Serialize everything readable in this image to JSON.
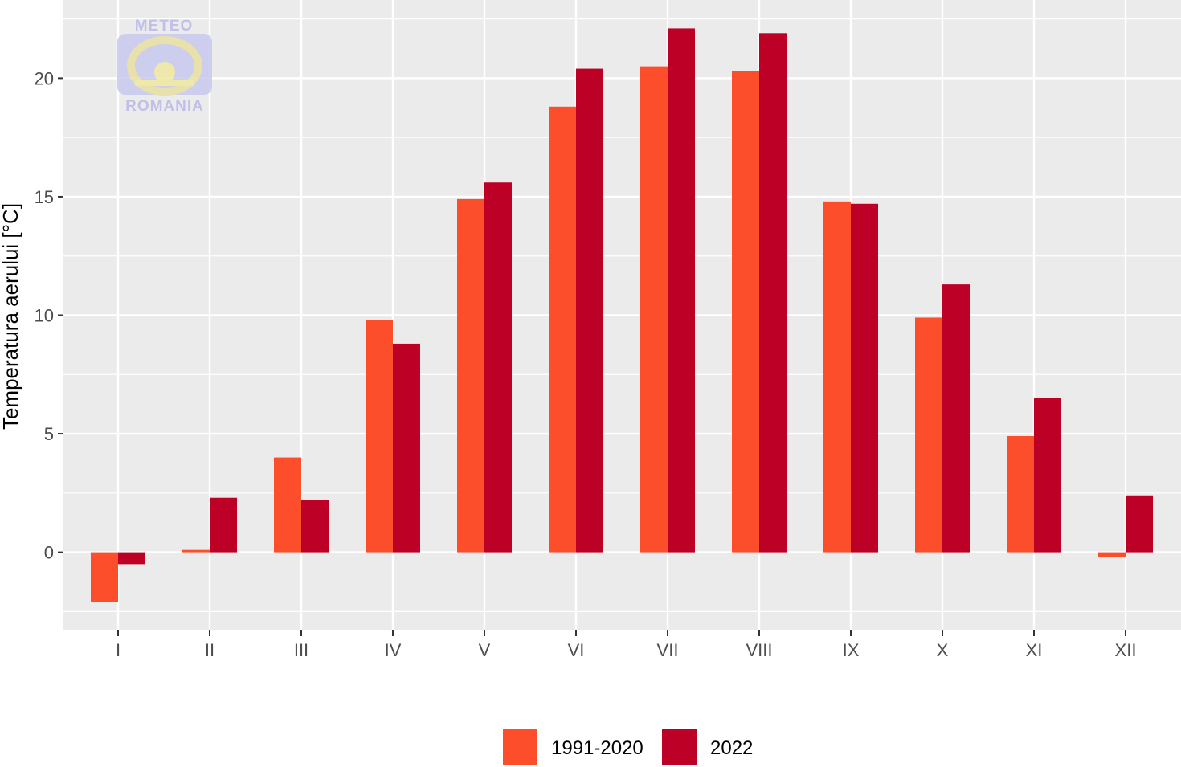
{
  "chart_data": {
    "type": "bar",
    "ylabel": "Temperatura aerului [°C]",
    "xlabel": "",
    "categories": [
      "I",
      "II",
      "III",
      "IV",
      "V",
      "VI",
      "VII",
      "VIII",
      "IX",
      "X",
      "XI",
      "XII"
    ],
    "series": [
      {
        "name": "1991-2020",
        "color": "#fc4e2a",
        "values": [
          -2.1,
          0.1,
          4.0,
          9.8,
          14.9,
          18.8,
          20.5,
          20.3,
          14.8,
          9.9,
          4.9,
          -0.2
        ]
      },
      {
        "name": "2022",
        "color": "#bd0026",
        "values": [
          -0.5,
          2.3,
          2.2,
          8.8,
          15.6,
          20.4,
          22.1,
          21.9,
          14.7,
          11.3,
          6.5,
          2.4
        ]
      }
    ],
    "ylim": [
      -3.3,
      23.3
    ],
    "yticks": [
      0,
      5,
      10,
      15,
      20
    ],
    "grid": true,
    "legend_position": "bottom",
    "panel_background": "#ebebeb"
  },
  "logo": {
    "top_text": "METEO",
    "bottom_text": "ROMANIA"
  }
}
